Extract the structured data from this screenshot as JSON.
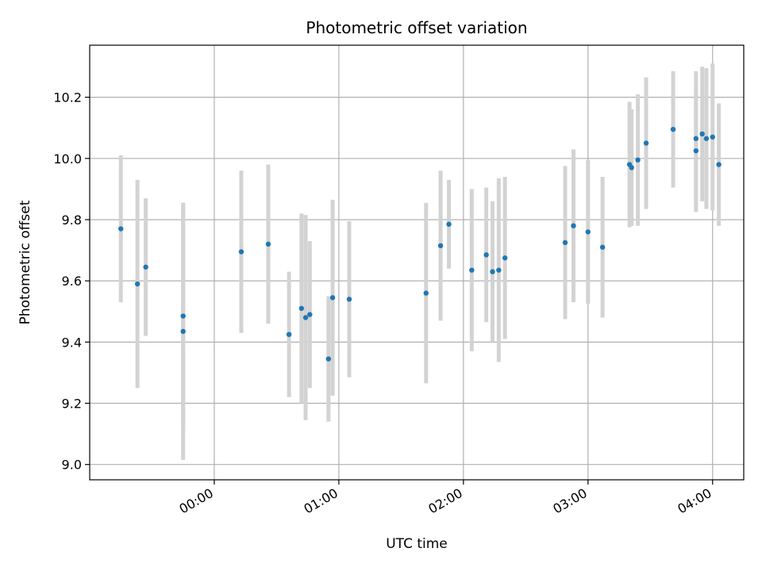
{
  "chart_data": {
    "type": "scatter",
    "title": "Photometric offset variation",
    "xlabel": "UTC time",
    "ylabel": "Photometric offset",
    "x_unit": "UTC time (hours)",
    "xlim": [
      "23:00",
      "04:15"
    ],
    "ylim": [
      8.95,
      10.37
    ],
    "grid": true,
    "x_ticks": [
      {
        "value": "00:00",
        "label": "00:00"
      },
      {
        "value": "01:00",
        "label": "01:00"
      },
      {
        "value": "02:00",
        "label": "02:00"
      },
      {
        "value": "03:00",
        "label": "03:00"
      },
      {
        "value": "04:00",
        "label": "04:00"
      }
    ],
    "y_ticks": [
      9.0,
      9.2,
      9.4,
      9.6,
      9.8,
      10.0,
      10.2
    ],
    "point_color": "#1f77b4",
    "errorbar_color": "#d3d3d3",
    "points": [
      {
        "x": "23:15",
        "y": 9.77,
        "err": 0.24
      },
      {
        "x": "23:23",
        "y": 9.59,
        "err": 0.34
      },
      {
        "x": "23:27",
        "y": 9.645,
        "err": 0.225
      },
      {
        "x": "23:45",
        "y": 9.485,
        "err": 0.37
      },
      {
        "x": "23:45",
        "y": 9.435,
        "err": 0.42
      },
      {
        "x": "00:13",
        "y": 9.695,
        "err": 0.265
      },
      {
        "x": "00:26",
        "y": 9.72,
        "err": 0.26
      },
      {
        "x": "00:36",
        "y": 9.425,
        "err": 0.205
      },
      {
        "x": "00:42",
        "y": 9.51,
        "err": 0.31
      },
      {
        "x": "00:44",
        "y": 9.48,
        "err": 0.335
      },
      {
        "x": "00:46",
        "y": 9.49,
        "err": 0.24
      },
      {
        "x": "00:55",
        "y": 9.345,
        "err": 0.205
      },
      {
        "x": "00:57",
        "y": 9.545,
        "err": 0.32
      },
      {
        "x": "01:05",
        "y": 9.54,
        "err": 0.255
      },
      {
        "x": "01:42",
        "y": 9.56,
        "err": 0.295
      },
      {
        "x": "01:49",
        "y": 9.715,
        "err": 0.245
      },
      {
        "x": "01:53",
        "y": 9.785,
        "err": 0.145
      },
      {
        "x": "02:04",
        "y": 9.635,
        "err": 0.265
      },
      {
        "x": "02:11",
        "y": 9.685,
        "err": 0.22
      },
      {
        "x": "02:14",
        "y": 9.63,
        "err": 0.23
      },
      {
        "x": "02:17",
        "y": 9.635,
        "err": 0.3
      },
      {
        "x": "02:20",
        "y": 9.675,
        "err": 0.265
      },
      {
        "x": "02:49",
        "y": 9.725,
        "err": 0.25
      },
      {
        "x": "02:53",
        "y": 9.78,
        "err": 0.25
      },
      {
        "x": "03:00",
        "y": 9.76,
        "err": 0.235
      },
      {
        "x": "03:07",
        "y": 9.71,
        "err": 0.23
      },
      {
        "x": "03:20",
        "y": 9.98,
        "err": 0.205
      },
      {
        "x": "03:21",
        "y": 9.97,
        "err": 0.19
      },
      {
        "x": "03:24",
        "y": 9.995,
        "err": 0.215
      },
      {
        "x": "03:28",
        "y": 10.05,
        "err": 0.215
      },
      {
        "x": "03:41",
        "y": 10.095,
        "err": 0.19
      },
      {
        "x": "03:52",
        "y": 10.065,
        "err": 0.22
      },
      {
        "x": "03:52",
        "y": 10.025,
        "err": 0.2
      },
      {
        "x": "03:55",
        "y": 10.08,
        "err": 0.22
      },
      {
        "x": "03:57",
        "y": 10.065,
        "err": 0.23
      },
      {
        "x": "04:00",
        "y": 10.07,
        "err": 0.24
      },
      {
        "x": "04:03",
        "y": 9.98,
        "err": 0.2
      }
    ]
  }
}
